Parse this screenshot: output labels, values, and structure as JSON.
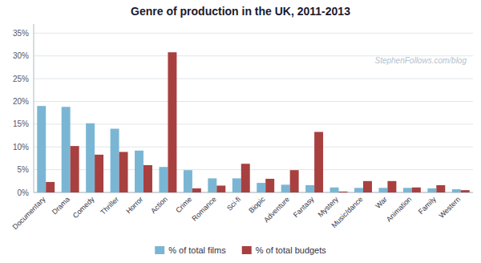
{
  "chart_data": {
    "type": "bar",
    "title": "Genre of production in the UK, 2011-2013",
    "categories": [
      "Documentary",
      "Drama",
      "Comedy",
      "Thriller",
      "Horror",
      "Action",
      "Crime",
      "Romance",
      "Sci-fi",
      "Biopic",
      "Adventure",
      "Fantasy",
      "Mystery",
      "Music/dance",
      "War",
      "Animation",
      "Family",
      "Western"
    ],
    "series": [
      {
        "name": "% of total films",
        "color": "#7ab6d4",
        "values": [
          19.0,
          18.8,
          15.2,
          14.0,
          9.2,
          5.6,
          4.9,
          3.1,
          3.1,
          2.1,
          1.7,
          1.6,
          1.1,
          1.0,
          1.0,
          1.0,
          0.9,
          0.7
        ]
      },
      {
        "name": "% of total budgets",
        "color": "#a84040",
        "values": [
          2.3,
          10.2,
          8.3,
          8.9,
          6.0,
          30.8,
          0.9,
          1.5,
          6.3,
          3.0,
          4.9,
          13.3,
          0.2,
          2.5,
          2.5,
          1.1,
          1.6,
          0.5
        ]
      }
    ],
    "ylim": [
      0,
      37
    ],
    "yticks": [
      {
        "value": 0,
        "label": "0%"
      },
      {
        "value": 5,
        "label": "5%"
      },
      {
        "value": 10,
        "label": "10%"
      },
      {
        "value": 15,
        "label": "15%"
      },
      {
        "value": 20,
        "label": "20%"
      },
      {
        "value": 25,
        "label": "25%"
      },
      {
        "value": 30,
        "label": "30%"
      },
      {
        "value": 35,
        "label": "35%"
      }
    ],
    "grid": true,
    "legend": "bottom",
    "annotations": [
      "StephenFollows.com/blog"
    ]
  }
}
